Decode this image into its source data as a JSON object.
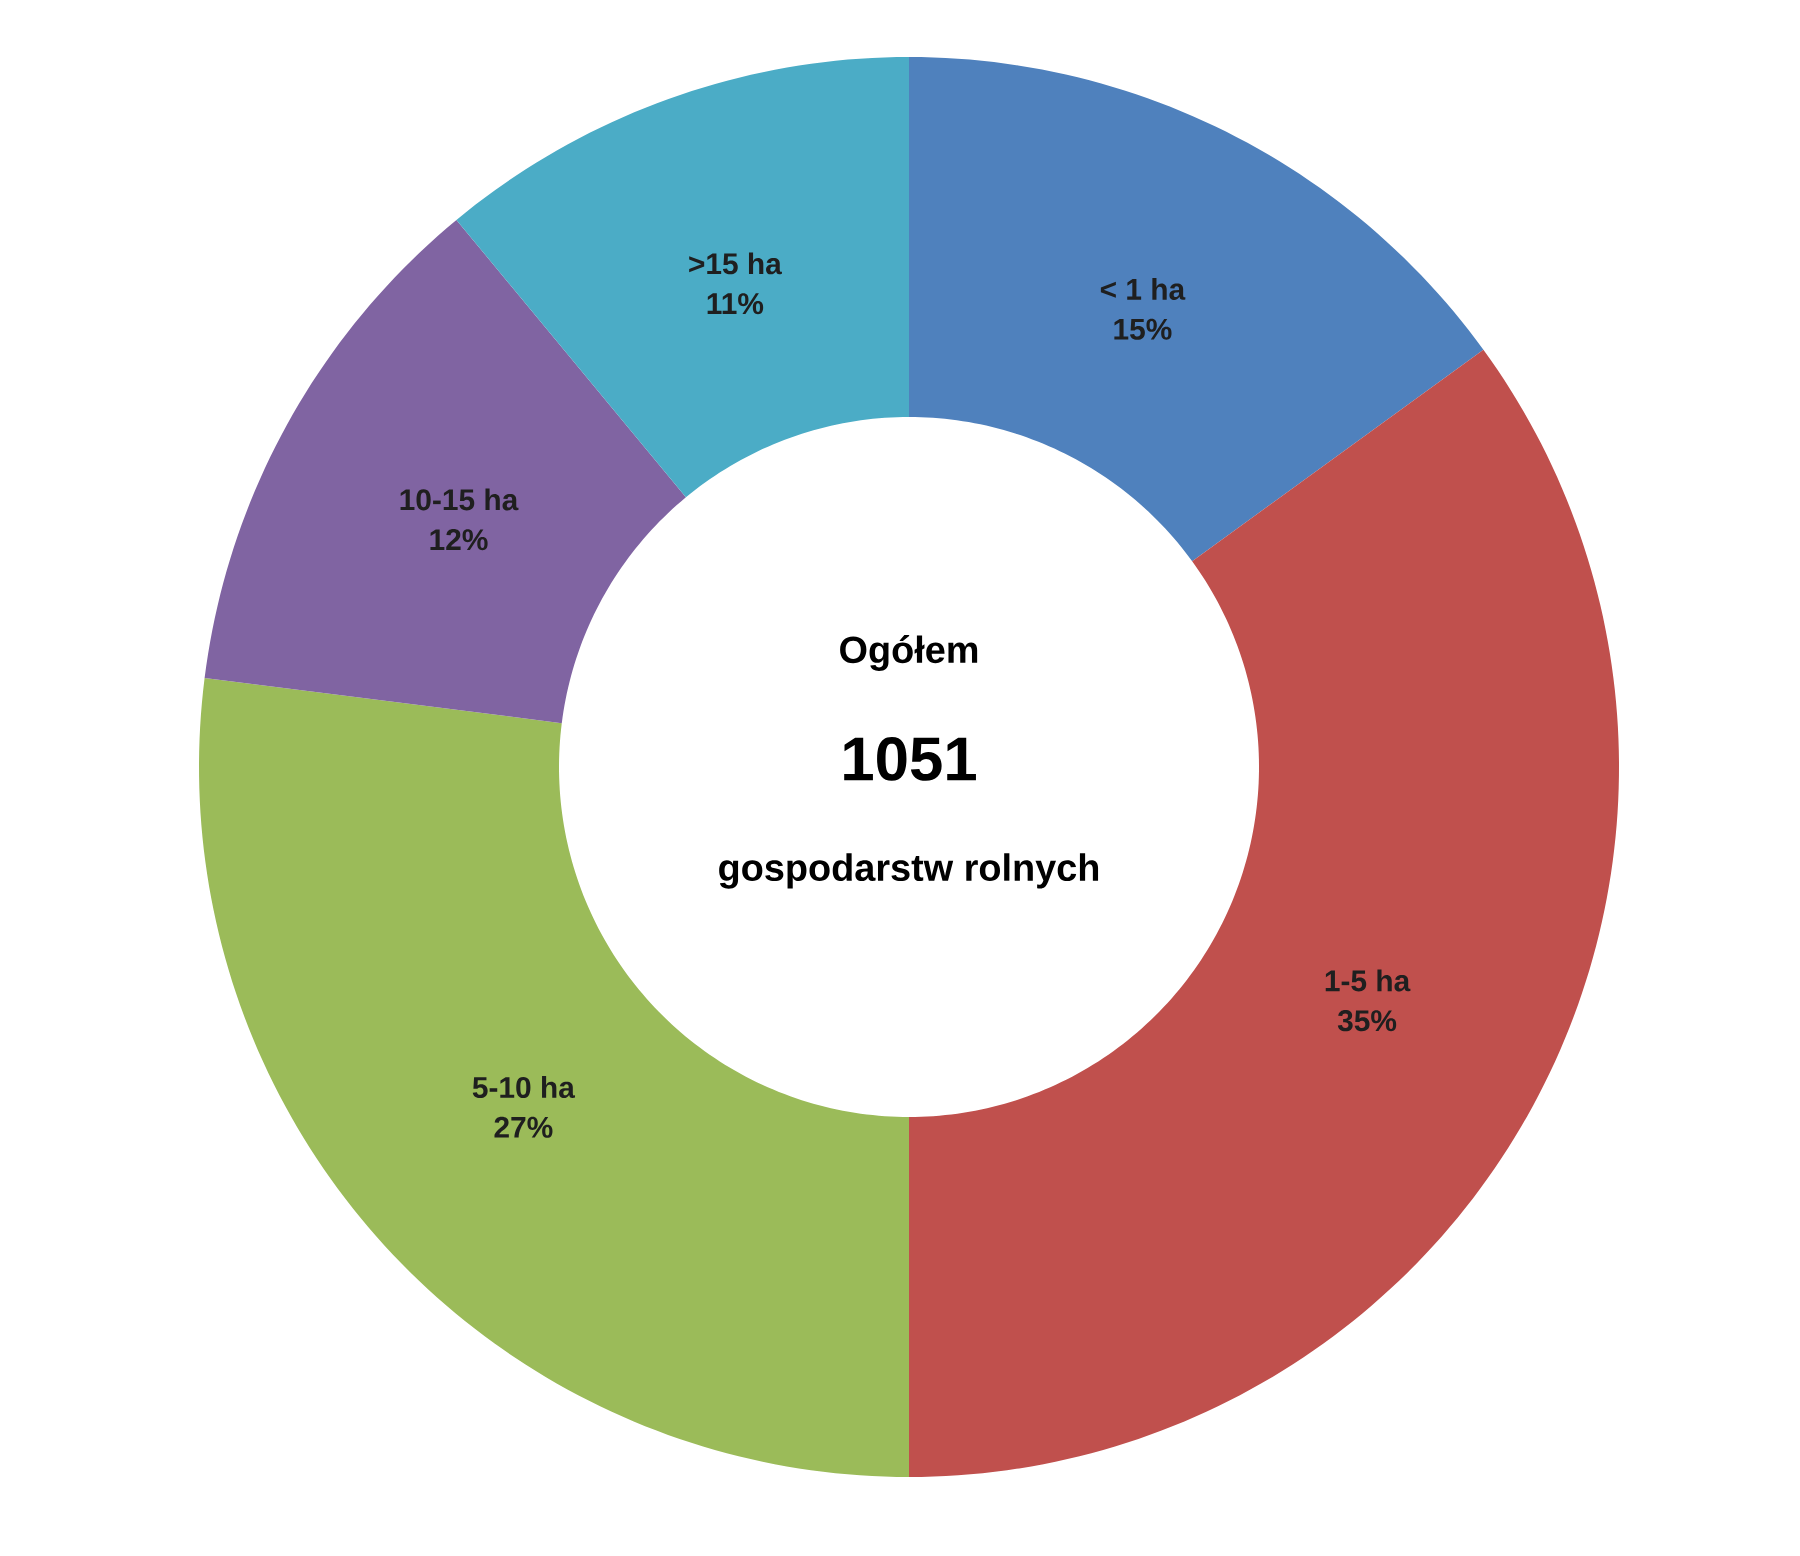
{
  "chart_data": {
    "type": "donut",
    "categories": [
      "< 1 ha",
      "1-5 ha",
      "5-10 ha",
      "10-15 ha",
      ">15 ha"
    ],
    "values": [
      15,
      35,
      27,
      12,
      11
    ],
    "value_labels": [
      "15%",
      "35%",
      "27%",
      "12%",
      "11%"
    ],
    "colors": [
      "#4f81bd",
      "#c0504d",
      "#9bbb59",
      "#8064a2",
      "#4bacc6"
    ],
    "annotations": [
      "Ogółem",
      "1051",
      "gospodarstw rolnych"
    ]
  }
}
